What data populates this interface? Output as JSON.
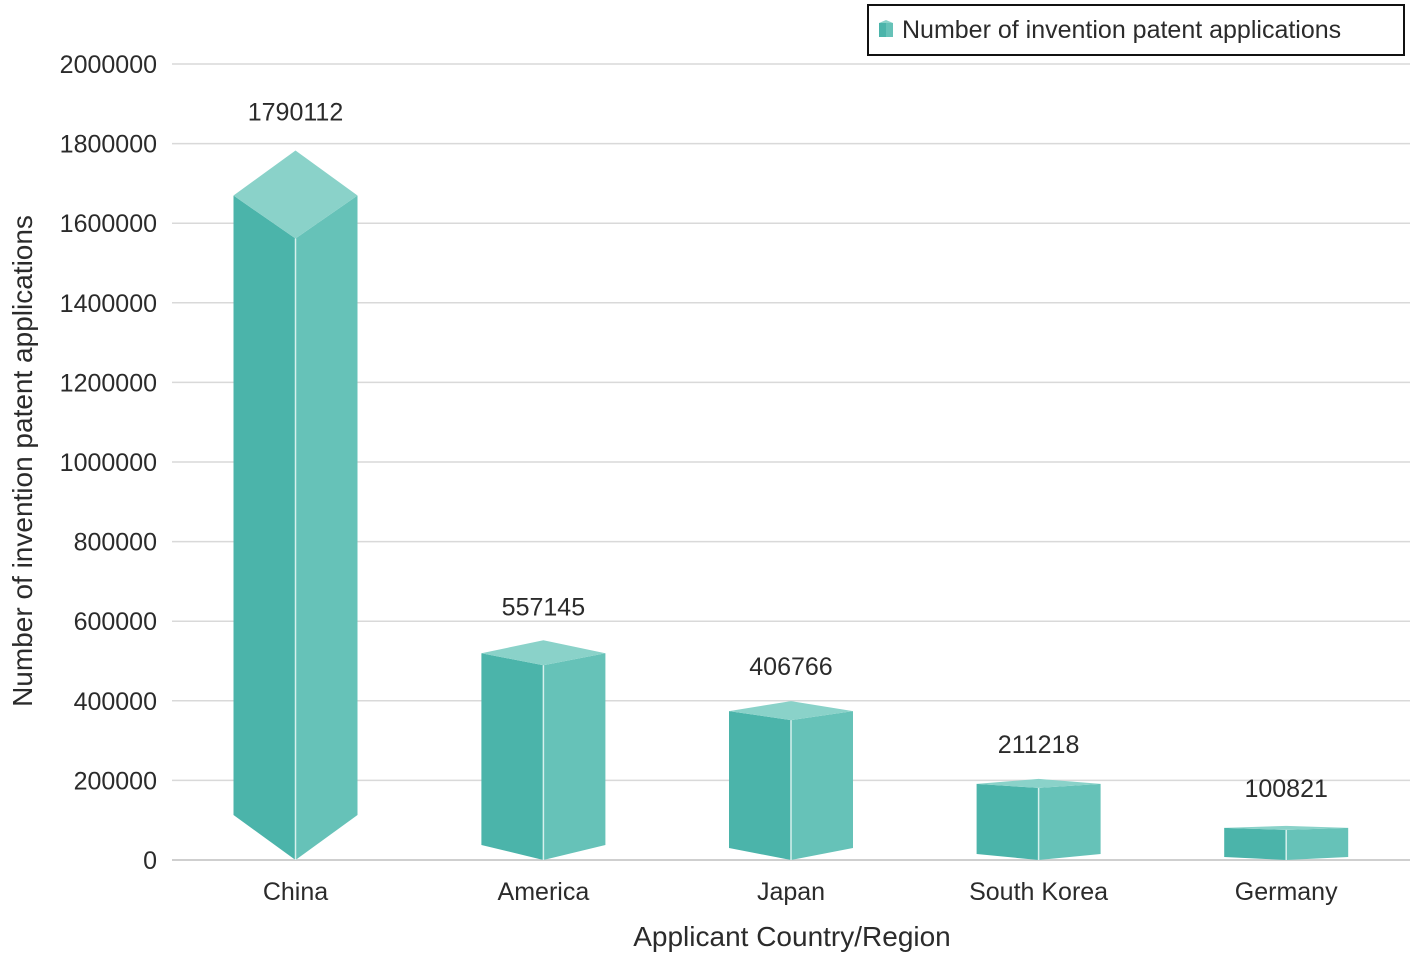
{
  "chart_data": {
    "type": "bar",
    "title": "",
    "categories": [
      "China",
      "America",
      "Japan",
      "South Korea",
      "Germany"
    ],
    "series": [
      {
        "name": "Number of invention patent applications",
        "values": [
          1790112,
          557145,
          406766,
          211218,
          100821
        ]
      }
    ],
    "data_labels": [
      "1790112",
      "557145",
      "406766",
      "211218",
      "100821"
    ],
    "xlabel": "Applicant Country/Region",
    "ylabel": "Number of invention patent applications",
    "ylim": [
      0,
      2000000
    ],
    "yticks": [
      0,
      200000,
      400000,
      600000,
      800000,
      1000000,
      1200000,
      1400000,
      1600000,
      1800000,
      2000000
    ],
    "ytick_labels": [
      "0",
      "200000",
      "400000",
      "600000",
      "800000",
      "1000000",
      "1200000",
      "1400000",
      "1600000",
      "1800000",
      "2000000"
    ],
    "grid": true,
    "legend_position": "top-right",
    "colors": {
      "bar_front": "#4bb4aa",
      "bar_side": "#66c2b8",
      "bar_top": "#8ad2c9",
      "bar_edge": "#d6f0ec",
      "grid": "#d9d9d9",
      "axis": "#cfcfcf",
      "text": "#2b2b2b",
      "legend_border": "#111111"
    }
  }
}
